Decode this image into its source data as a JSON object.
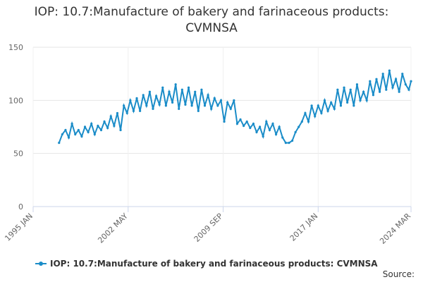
{
  "chart_data": {
    "type": "line",
    "title": "IOP: 10.7:Manufacture of bakery and farinaceous products: CVMNSA",
    "source": "Source:",
    "x": [
      "1997 JAN",
      "1997 APR",
      "1997 JUL",
      "1997 OCT",
      "1998 JAN",
      "1998 APR",
      "1998 JUL",
      "1998 OCT",
      "1999 JAN",
      "1999 APR",
      "1999 JUL",
      "1999 OCT",
      "2000 JAN",
      "2000 APR",
      "2000 JUL",
      "2000 OCT",
      "2001 JAN",
      "2001 APR",
      "2001 JUL",
      "2001 OCT",
      "2002 JAN",
      "2002 APR",
      "2002 JUL",
      "2002 OCT",
      "2003 JAN",
      "2003 APR",
      "2003 JUL",
      "2003 OCT",
      "2004 JAN",
      "2004 APR",
      "2004 JUL",
      "2004 OCT",
      "2005 JAN",
      "2005 APR",
      "2005 JUL",
      "2005 OCT",
      "2006 JAN",
      "2006 APR",
      "2006 JUL",
      "2006 OCT",
      "2007 JAN",
      "2007 APR",
      "2007 JUL",
      "2007 OCT",
      "2008 JAN",
      "2008 APR",
      "2008 JUL",
      "2008 OCT",
      "2009 JAN",
      "2009 APR",
      "2009 JUL",
      "2009 OCT",
      "2010 JAN",
      "2010 APR",
      "2010 JUL",
      "2010 OCT",
      "2011 JAN",
      "2011 APR",
      "2011 JUL",
      "2011 OCT",
      "2012 JAN",
      "2012 APR",
      "2012 JUL",
      "2012 OCT",
      "2013 JAN",
      "2013 APR",
      "2013 JUL",
      "2013 OCT",
      "2014 JAN",
      "2014 APR",
      "2014 JUL",
      "2014 OCT",
      "2015 JAN",
      "2015 APR",
      "2015 JUL",
      "2015 OCT",
      "2016 JAN",
      "2016 APR",
      "2016 JUL",
      "2016 OCT",
      "2017 JAN",
      "2017 APR",
      "2017 JUL",
      "2017 OCT",
      "2018 JAN",
      "2018 APR",
      "2018 JUL",
      "2018 OCT",
      "2019 JAN",
      "2019 APR",
      "2019 JUL",
      "2019 OCT",
      "2020 JAN",
      "2020 APR",
      "2020 JUL",
      "2020 OCT",
      "2021 JAN",
      "2021 APR",
      "2021 JUL",
      "2021 OCT",
      "2022 JAN",
      "2022 APR",
      "2022 JUL",
      "2022 OCT",
      "2023 JAN",
      "2023 APR",
      "2023 JUL",
      "2023 OCT",
      "2024 JAN",
      "2024 MAR"
    ],
    "series": [
      {
        "name": "IOP: 10.7:Manufacture of bakery and farinaceous products: CVMNSA",
        "color": "#1a8cc8",
        "values": [
          60,
          68,
          72,
          65,
          78,
          68,
          72,
          66,
          75,
          70,
          78,
          68,
          76,
          72,
          80,
          74,
          85,
          76,
          88,
          72,
          95,
          88,
          100,
          90,
          102,
          90,
          105,
          95,
          108,
          92,
          104,
          96,
          112,
          95,
          108,
          98,
          115,
          92,
          110,
          96,
          112,
          95,
          108,
          90,
          110,
          95,
          105,
          92,
          102,
          95,
          100,
          80,
          98,
          92,
          100,
          78,
          82,
          76,
          80,
          74,
          78,
          70,
          75,
          66,
          80,
          72,
          78,
          68,
          75,
          65,
          60,
          60,
          62,
          70,
          75,
          80,
          88,
          80,
          95,
          85,
          95,
          88,
          100,
          90,
          98,
          92,
          110,
          95,
          112,
          98,
          110,
          95,
          115,
          100,
          108,
          100,
          118,
          105,
          120,
          108,
          125,
          110,
          128,
          112,
          120,
          108,
          125,
          115,
          110,
          118
        ]
      }
    ],
    "xlim": [
      "1995 JAN",
      "2024 MAR"
    ],
    "xticks": [
      "1995 JAN",
      "2002 MAY",
      "2009 SEP",
      "2017 JAN",
      "2024 MAR"
    ],
    "ylim": [
      0,
      150
    ],
    "yticks": [
      0,
      50,
      100,
      150
    ],
    "grid": true,
    "legend": "bottom"
  }
}
